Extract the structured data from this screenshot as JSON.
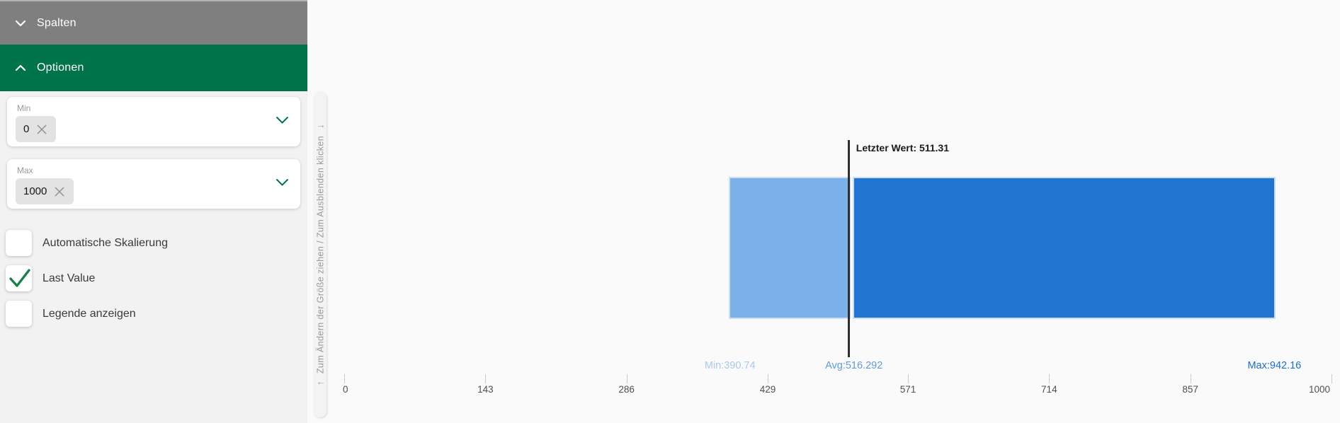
{
  "sidebar": {
    "sections": [
      {
        "label": "Spalten",
        "state": "collapsed"
      },
      {
        "label": "Optionen",
        "state": "expanded"
      }
    ],
    "fields": [
      {
        "label": "Min",
        "chip_value": "0"
      },
      {
        "label": "Max",
        "chip_value": "1000"
      }
    ],
    "checkboxes": [
      {
        "label": "Automatische Skalierung",
        "checked": false
      },
      {
        "label": "Last Value",
        "checked": true
      },
      {
        "label": "Legende anzeigen",
        "checked": false
      }
    ]
  },
  "resize_strip": {
    "arrow_start": "↑",
    "text": "Zum Ändern der Größe ziehen / Zum Ausblenden klicken",
    "arrow_end": "↓"
  },
  "colors": {
    "header_gray": "#7f7f7f",
    "header_green": "#00734a",
    "bar_light_blue": "#7ab1e8",
    "bar_dark_blue": "#1f75cf",
    "last_value_line": "#2e2e2e"
  },
  "chart_data": {
    "type": "bar",
    "subtype": "bullet",
    "title": "",
    "xlabel": "",
    "ylabel": "",
    "grid": false,
    "legend": false,
    "axis": {
      "min": 0,
      "max": 1000,
      "ticks": [
        0,
        143,
        286,
        429,
        571,
        714,
        857,
        1000
      ]
    },
    "last_value": {
      "label": "Letzter Wert: 511.31",
      "value": 511.31
    },
    "segments": [
      {
        "name": "min-to-last",
        "from": 390.74,
        "to": 511.31,
        "color": "#7ab1e8"
      },
      {
        "name": "avg-to-max",
        "from": 516.292,
        "to": 942.16,
        "color": "#1f75cf"
      }
    ],
    "stats": [
      {
        "name": "min",
        "text": "Min:390.74",
        "value": 390.74,
        "color": "#a9c9ef"
      },
      {
        "name": "avg",
        "text": "Avg:516.292",
        "value": 516.292,
        "color": "#5f9bdf"
      },
      {
        "name": "max",
        "text": "Max:942.16",
        "value": 942.16,
        "color": "#1a6fce"
      }
    ]
  }
}
